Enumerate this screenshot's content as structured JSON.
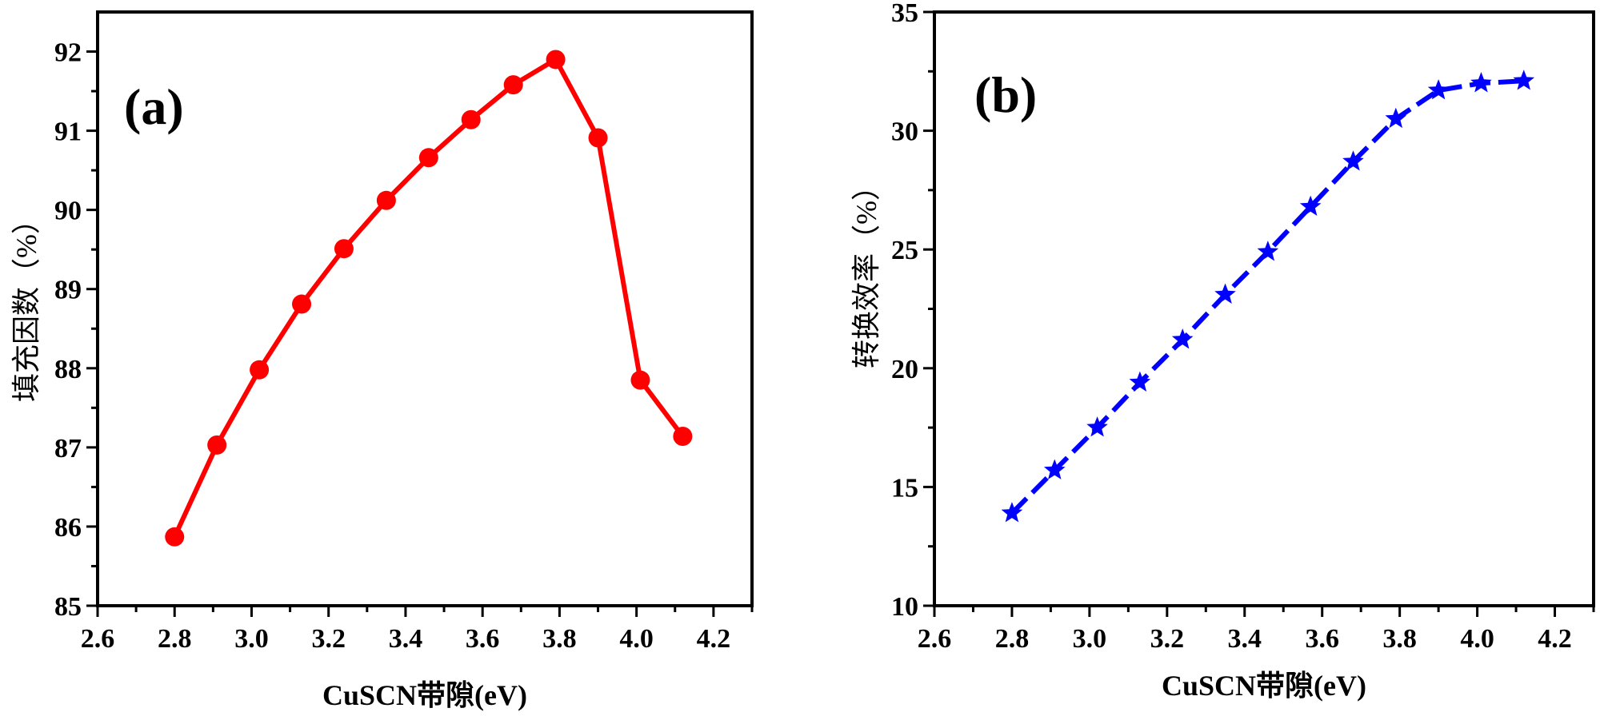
{
  "chart_data": [
    {
      "type": "line",
      "panel_label": "(a)",
      "xlabel": "CuSCN带隙(eV)",
      "ylabel": "填充因数（%）",
      "xlim": [
        2.6,
        4.3
      ],
      "ylim": [
        85,
        92.5
      ],
      "xticks": [
        2.6,
        2.8,
        3.0,
        3.2,
        3.4,
        3.6,
        3.8,
        4.0,
        4.2
      ],
      "yticks": [
        85,
        86,
        87,
        88,
        89,
        90,
        91,
        92
      ],
      "xtick_labels": [
        "2.6",
        "2.8",
        "3.0",
        "3.2",
        "3.4",
        "3.6",
        "3.8",
        "4.0",
        "4.2"
      ],
      "ytick_labels": [
        "85",
        "86",
        "87",
        "88",
        "89",
        "90",
        "91",
        "92"
      ],
      "marker": "circle",
      "line_style": "solid",
      "color": "#ff0000",
      "series": [
        {
          "name": "填充因数",
          "x": [
            2.8,
            2.91,
            3.02,
            3.13,
            3.24,
            3.35,
            3.46,
            3.57,
            3.68,
            3.79,
            3.9,
            4.01,
            4.12
          ],
          "y": [
            85.87,
            87.03,
            87.98,
            88.81,
            89.51,
            90.12,
            90.66,
            91.14,
            91.58,
            91.9,
            90.91,
            87.85,
            87.14
          ]
        }
      ]
    },
    {
      "type": "line",
      "panel_label": "(b)",
      "xlabel": "CuSCN带隙(eV)",
      "ylabel": "转换效率（%）",
      "xlim": [
        2.6,
        4.3
      ],
      "ylim": [
        10,
        35
      ],
      "xticks": [
        2.6,
        2.8,
        3.0,
        3.2,
        3.4,
        3.6,
        3.8,
        4.0,
        4.2
      ],
      "yticks": [
        10,
        15,
        20,
        25,
        30,
        35
      ],
      "xtick_labels": [
        "2.6",
        "2.8",
        "3.0",
        "3.2",
        "3.4",
        "3.6",
        "3.8",
        "4.0",
        "4.2"
      ],
      "ytick_labels": [
        "10",
        "15",
        "20",
        "25",
        "30",
        "35"
      ],
      "marker": "star",
      "line_style": "dashed",
      "color": "#0000ff",
      "series": [
        {
          "name": "转换效率",
          "x": [
            2.8,
            2.91,
            3.02,
            3.13,
            3.24,
            3.35,
            3.46,
            3.57,
            3.68,
            3.79,
            3.9,
            4.01,
            4.12
          ],
          "y": [
            13.9,
            15.7,
            17.5,
            19.4,
            21.2,
            23.1,
            24.9,
            26.8,
            28.7,
            30.5,
            31.7,
            32.0,
            32.1
          ]
        }
      ]
    }
  ]
}
